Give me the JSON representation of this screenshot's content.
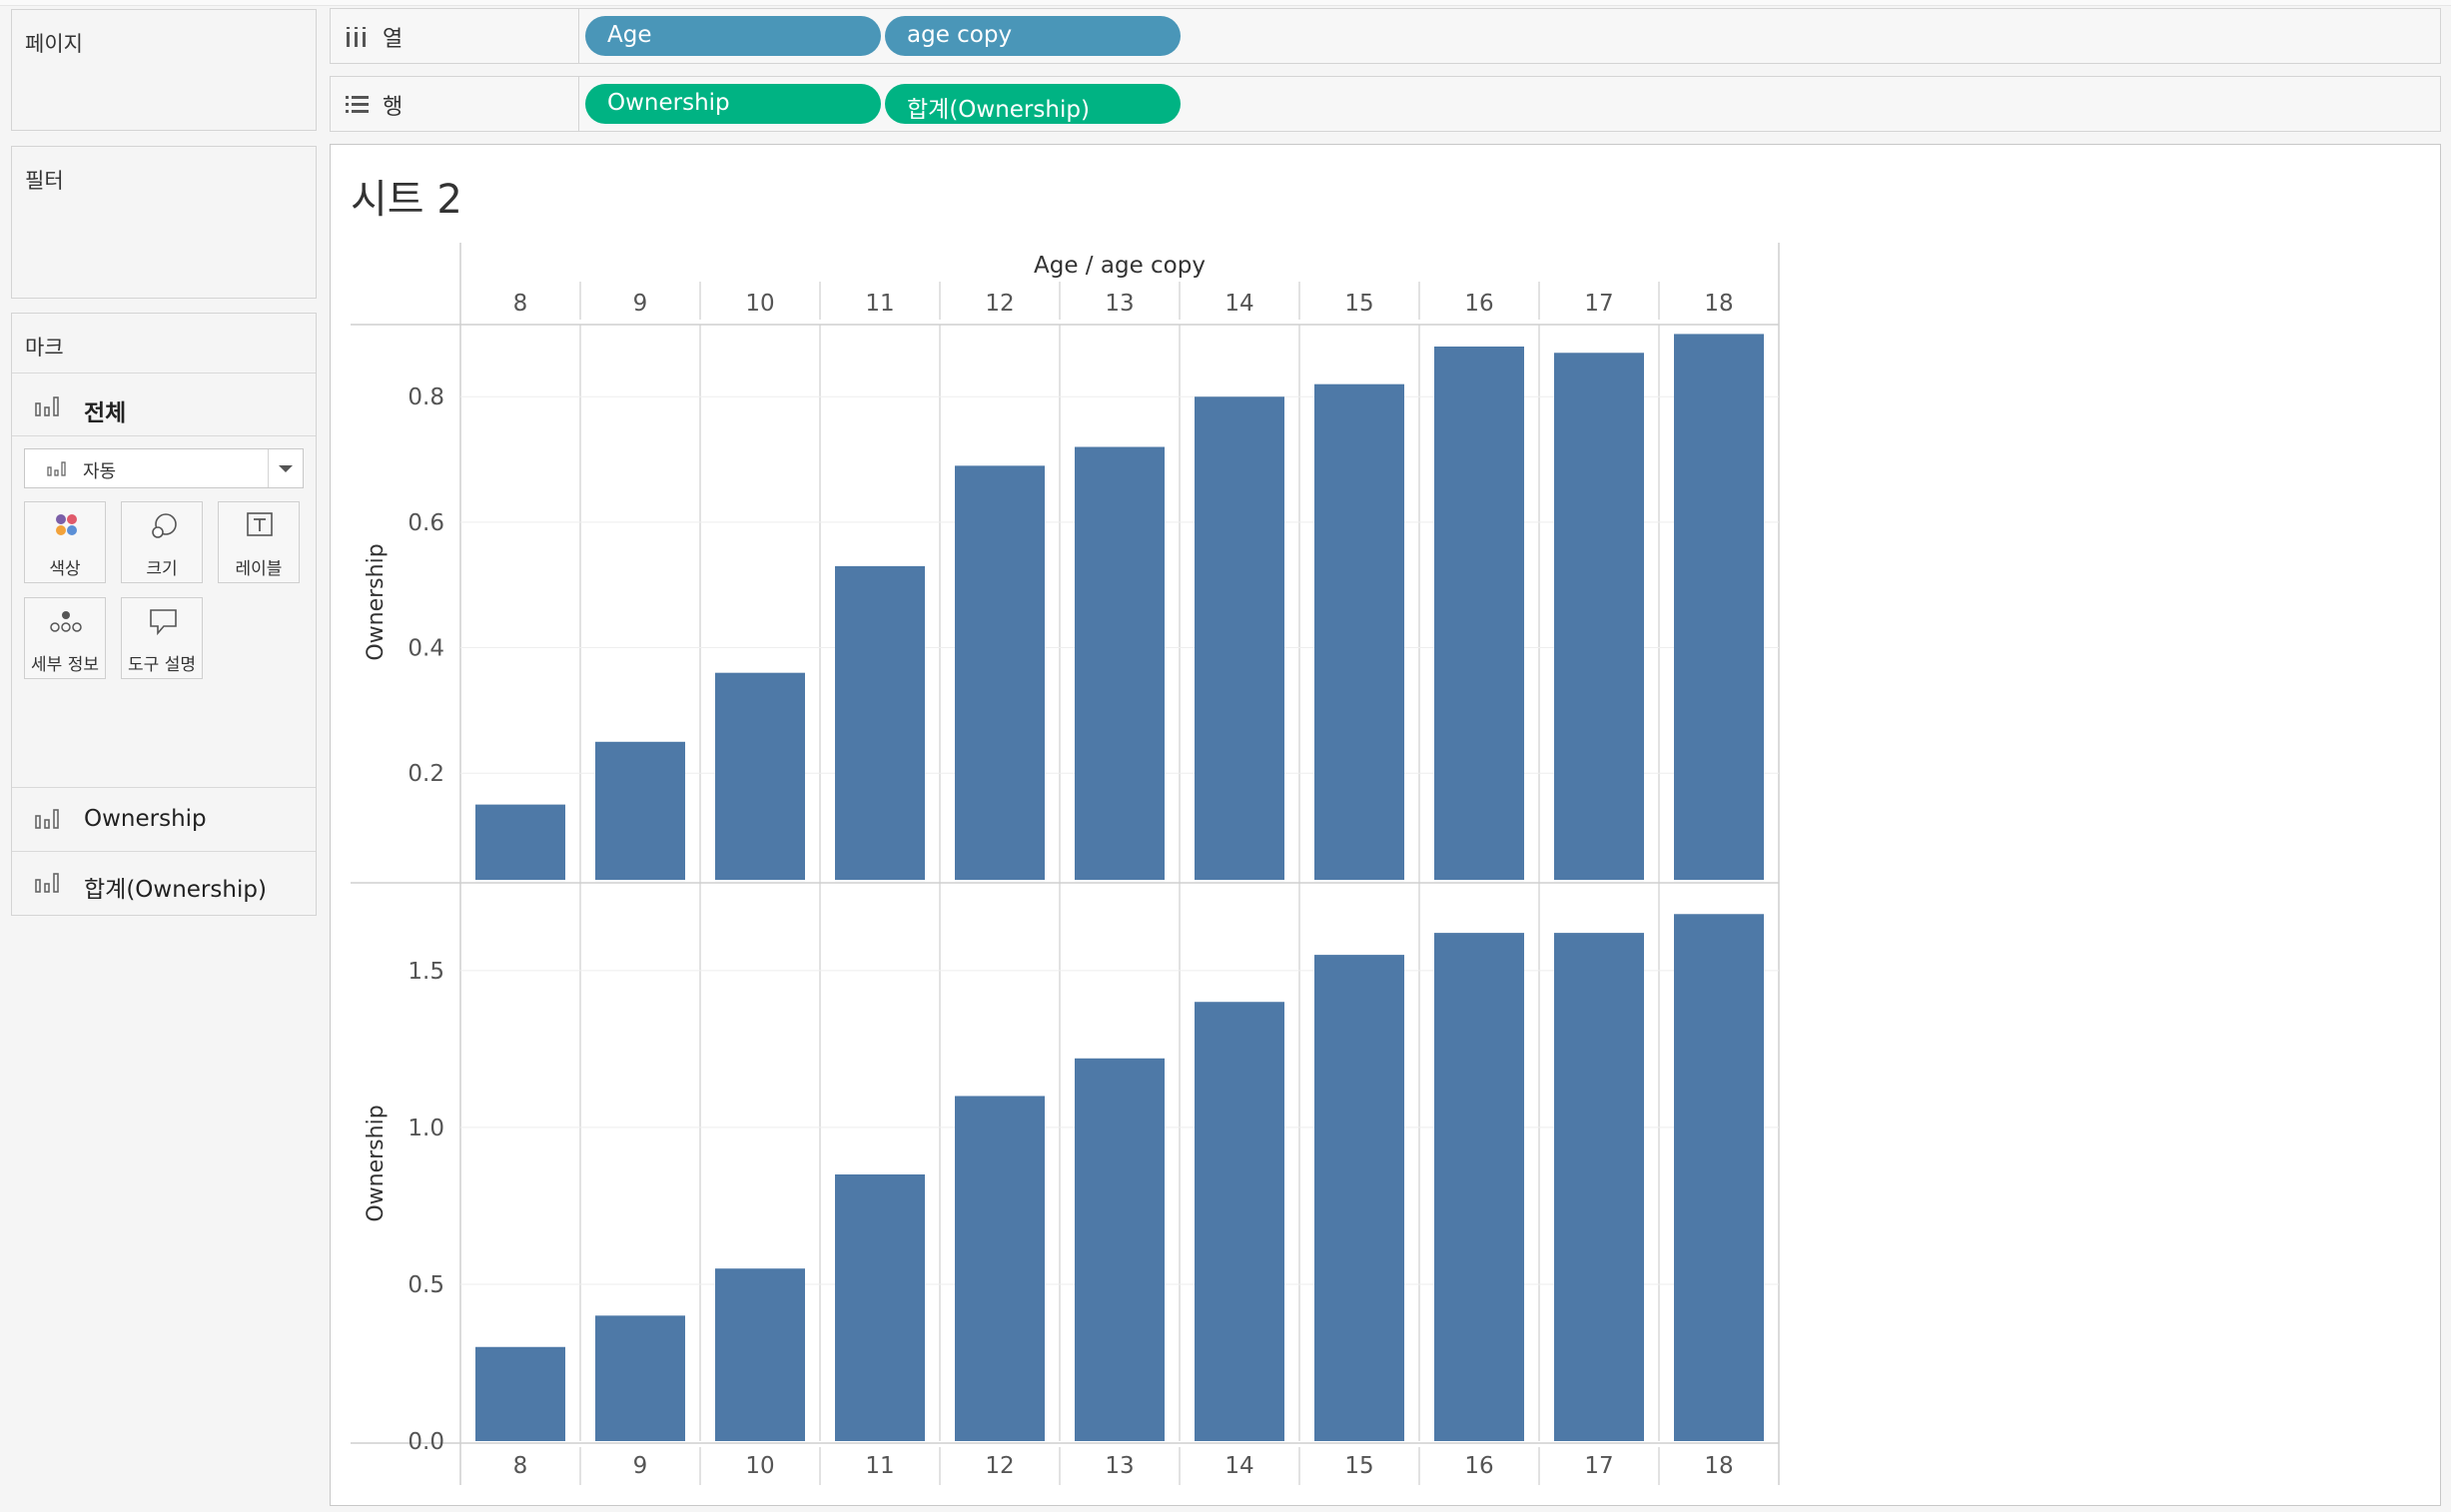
{
  "panels": {
    "pages_title": "페이지",
    "filters_title": "필터",
    "marks_title": "마크",
    "marks_all_label": "전체",
    "mark_type": "자동",
    "mark_buttons": [
      "색상",
      "크기",
      "레이블",
      "세부 정보",
      "도구 설명"
    ],
    "mark_tabs": [
      "Ownership",
      "합계(Ownership)"
    ]
  },
  "shelves": {
    "columns_label": "열",
    "rows_label": "행",
    "columns_pills": [
      "Age",
      "age copy"
    ],
    "rows_pills": [
      "Ownership",
      "합계(Ownership)"
    ]
  },
  "sheet": {
    "title": "시트 2"
  },
  "colors": {
    "bar": "#4e79a7",
    "pill_dimension": "#4a96b8",
    "pill_measure": "#00b383"
  },
  "chart_data": {
    "type": "bar",
    "header_title": "Age  /  age copy",
    "categories": [
      "8",
      "9",
      "10",
      "11",
      "12",
      "13",
      "14",
      "15",
      "16",
      "17",
      "18"
    ],
    "panes": [
      {
        "ylabel": "Ownership",
        "ylim": [
          0.03,
          0.915
        ],
        "yticks": [
          0.2,
          0.4,
          0.6,
          0.8
        ],
        "tick_labels": [
          "0.2",
          "0.4",
          "0.6",
          "0.8"
        ],
        "values": [
          0.15,
          0.25,
          0.36,
          0.53,
          0.69,
          0.72,
          0.8,
          0.82,
          0.88,
          0.87,
          0.9
        ]
      },
      {
        "ylabel": "Ownership",
        "ylim": [
          0,
          1.77
        ],
        "yticks": [
          0,
          0.5,
          1.0,
          1.5
        ],
        "tick_labels": [
          "0.0",
          "0.5",
          "1.0",
          "1.5"
        ],
        "values": [
          0.3,
          0.4,
          0.55,
          0.85,
          1.1,
          1.22,
          1.4,
          1.55,
          1.62,
          1.62,
          1.68
        ]
      }
    ],
    "grid": true
  }
}
